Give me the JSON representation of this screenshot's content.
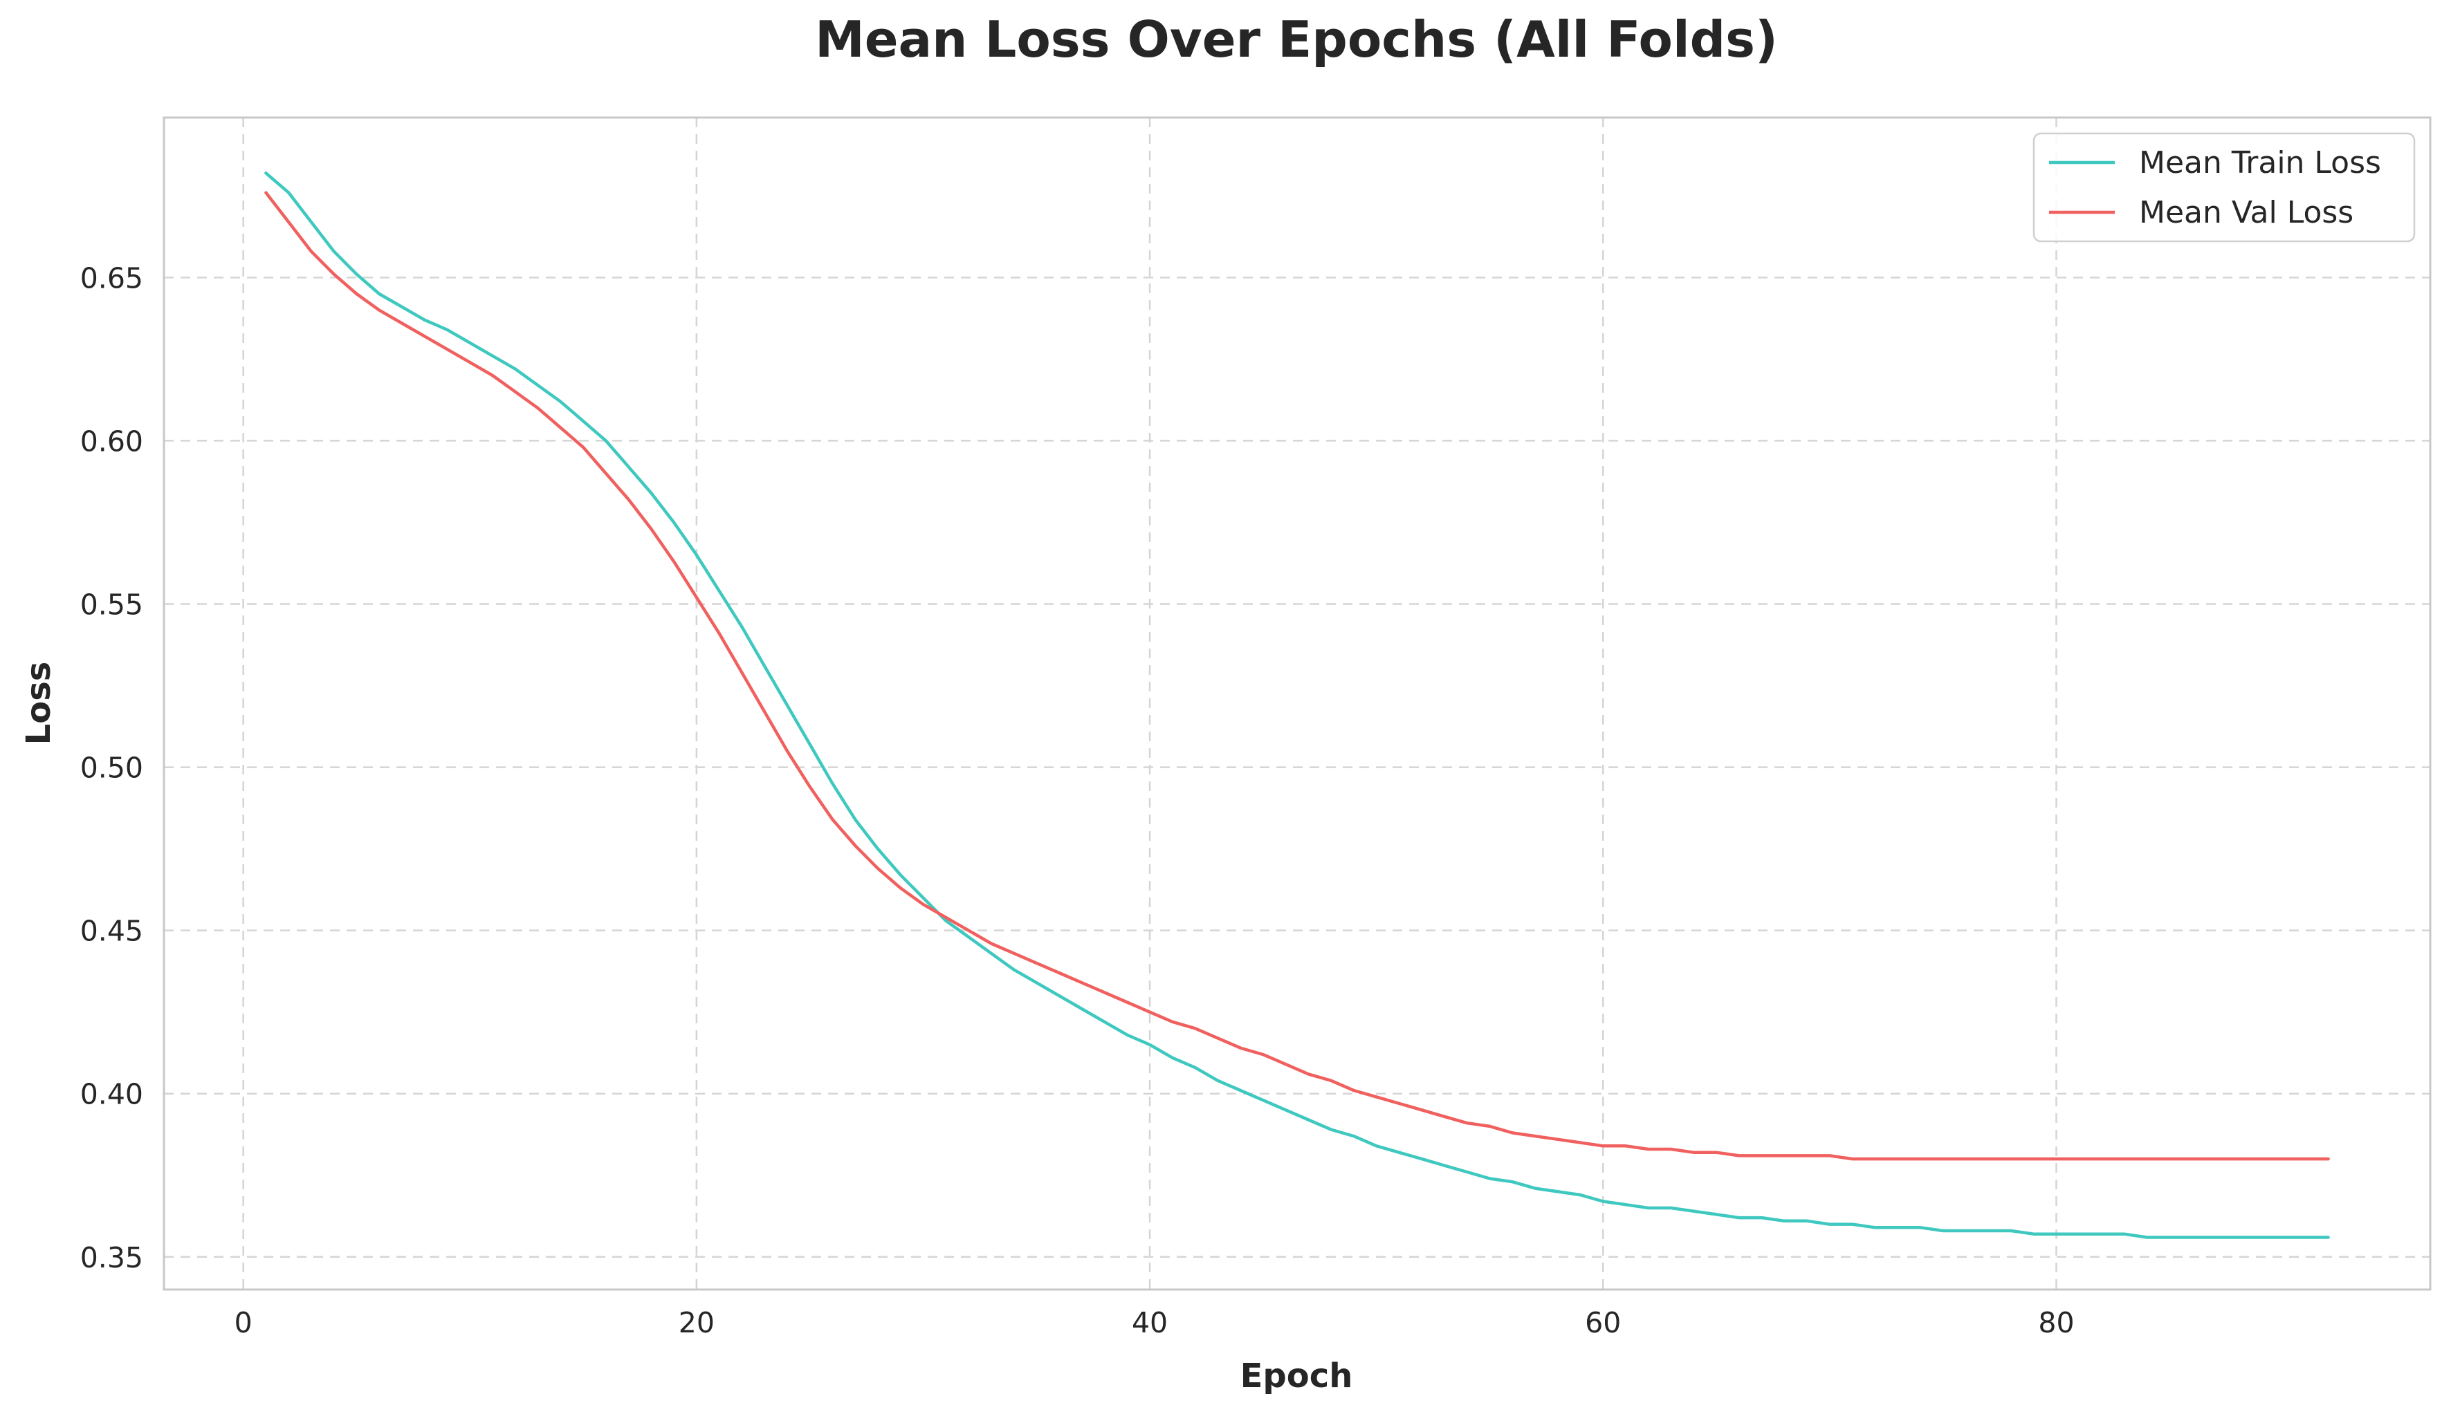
{
  "chart_data": {
    "type": "line",
    "title": "Mean Loss Over Epochs (All Folds)",
    "xlabel": "Epoch",
    "ylabel": "Loss",
    "xlim": [
      -3.5,
      96.5
    ],
    "ylim": [
      0.34,
      0.699
    ],
    "xticks": [
      0,
      20,
      40,
      60,
      80
    ],
    "yticks": [
      0.35,
      0.4,
      0.45,
      0.5,
      0.55,
      0.6,
      0.65
    ],
    "ytick_labels": [
      "0.35",
      "0.40",
      "0.45",
      "0.50",
      "0.55",
      "0.60",
      "0.65"
    ],
    "grid": true,
    "legend_position": "top-right",
    "x": [
      1,
      2,
      3,
      4,
      5,
      6,
      7,
      8,
      9,
      10,
      11,
      12,
      13,
      14,
      15,
      16,
      17,
      18,
      19,
      20,
      21,
      22,
      23,
      24,
      25,
      26,
      27,
      28,
      29,
      30,
      31,
      32,
      33,
      34,
      35,
      36,
      37,
      38,
      39,
      40,
      41,
      42,
      43,
      44,
      45,
      46,
      47,
      48,
      49,
      50,
      51,
      52,
      53,
      54,
      55,
      56,
      57,
      58,
      59,
      60,
      61,
      62,
      63,
      64,
      65,
      66,
      67,
      68,
      69,
      70,
      71,
      72,
      73,
      74,
      75,
      76,
      77,
      78,
      79,
      80,
      81,
      82,
      83,
      84,
      85,
      86,
      87,
      88,
      89,
      90,
      91,
      92
    ],
    "series": [
      {
        "name": "Mean Train Loss",
        "color": "#3ec8bf",
        "values": [
          0.682,
          0.676,
          0.667,
          0.658,
          0.651,
          0.645,
          0.641,
          0.637,
          0.634,
          0.63,
          0.626,
          0.622,
          0.617,
          0.612,
          0.606,
          0.6,
          0.592,
          0.584,
          0.575,
          0.565,
          0.554,
          0.543,
          0.531,
          0.519,
          0.507,
          0.495,
          0.484,
          0.475,
          0.467,
          0.46,
          0.453,
          0.448,
          0.443,
          0.438,
          0.434,
          0.43,
          0.426,
          0.422,
          0.418,
          0.415,
          0.411,
          0.408,
          0.404,
          0.401,
          0.398,
          0.395,
          0.392,
          0.389,
          0.387,
          0.384,
          0.382,
          0.38,
          0.378,
          0.376,
          0.374,
          0.373,
          0.371,
          0.37,
          0.369,
          0.367,
          0.366,
          0.365,
          0.365,
          0.364,
          0.363,
          0.362,
          0.362,
          0.361,
          0.361,
          0.36,
          0.36,
          0.359,
          0.359,
          0.359,
          0.358,
          0.358,
          0.358,
          0.358,
          0.357,
          0.357,
          0.357,
          0.357,
          0.357,
          0.356,
          0.356,
          0.356,
          0.356,
          0.356,
          0.356,
          0.356,
          0.356,
          0.356
        ]
      },
      {
        "name": "Mean Val Loss",
        "color": "#f0605e",
        "values": [
          0.676,
          0.667,
          0.658,
          0.651,
          0.645,
          0.64,
          0.636,
          0.632,
          0.628,
          0.624,
          0.62,
          0.615,
          0.61,
          0.604,
          0.598,
          0.59,
          0.582,
          0.573,
          0.563,
          0.552,
          0.541,
          0.529,
          0.517,
          0.505,
          0.494,
          0.484,
          0.476,
          0.469,
          0.463,
          0.458,
          0.454,
          0.45,
          0.446,
          0.443,
          0.44,
          0.437,
          0.434,
          0.431,
          0.428,
          0.425,
          0.422,
          0.42,
          0.417,
          0.414,
          0.412,
          0.409,
          0.406,
          0.404,
          0.401,
          0.399,
          0.397,
          0.395,
          0.393,
          0.391,
          0.39,
          0.388,
          0.387,
          0.386,
          0.385,
          0.384,
          0.384,
          0.383,
          0.383,
          0.382,
          0.382,
          0.381,
          0.381,
          0.381,
          0.381,
          0.381,
          0.38,
          0.38,
          0.38,
          0.38,
          0.38,
          0.38,
          0.38,
          0.38,
          0.38,
          0.38,
          0.38,
          0.38,
          0.38,
          0.38,
          0.38,
          0.38,
          0.38,
          0.38,
          0.38,
          0.38,
          0.38,
          0.38
        ]
      }
    ]
  }
}
